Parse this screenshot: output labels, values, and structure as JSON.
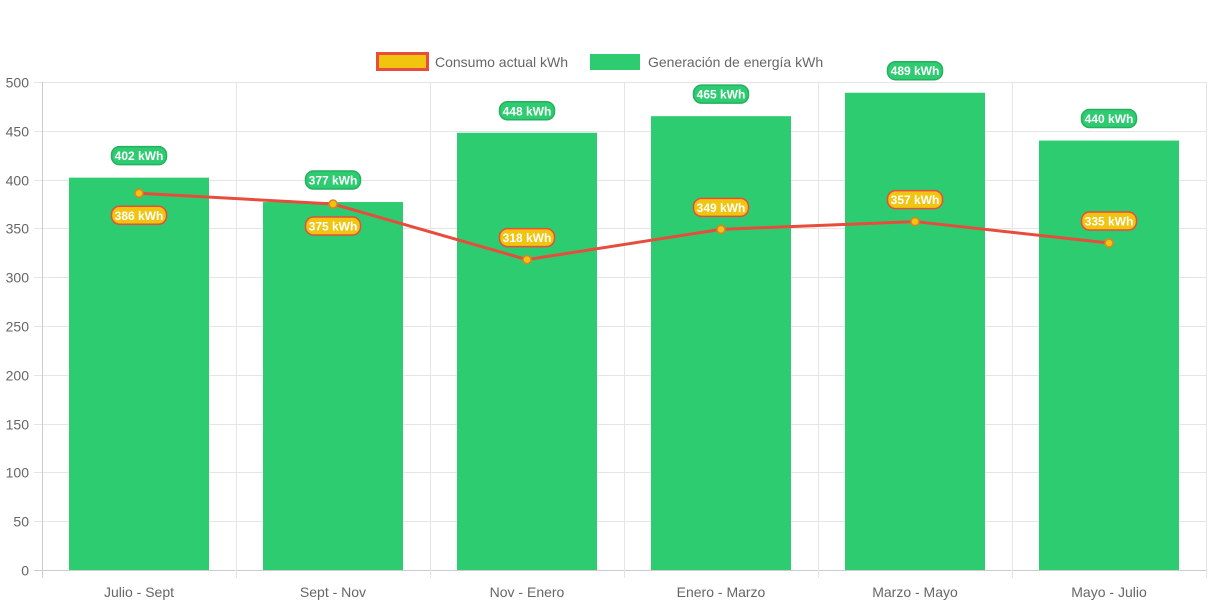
{
  "chart_data": {
    "type": "bar",
    "categories": [
      "Julio - Sept",
      "Sept - Nov",
      "Nov - Enero",
      "Enero - Marzo",
      "Marzo - Mayo",
      "Mayo - Julio"
    ],
    "series": [
      {
        "name": "Consumo actual kWh",
        "kind": "line",
        "values": [
          386,
          375,
          318,
          349,
          357,
          335
        ],
        "color": "#e74c3c",
        "fill": "#f1c40f"
      },
      {
        "name": "Generación de energía kWh",
        "kind": "bar",
        "values": [
          402,
          377,
          448,
          465,
          489,
          440
        ],
        "color": "#2ecc71"
      }
    ],
    "label_suffix": " kWh",
    "ylim": [
      0,
      500
    ],
    "yticks": [
      0,
      50,
      100,
      150,
      200,
      250,
      300,
      350,
      400,
      450,
      500
    ],
    "grid": true,
    "legend": "top"
  }
}
